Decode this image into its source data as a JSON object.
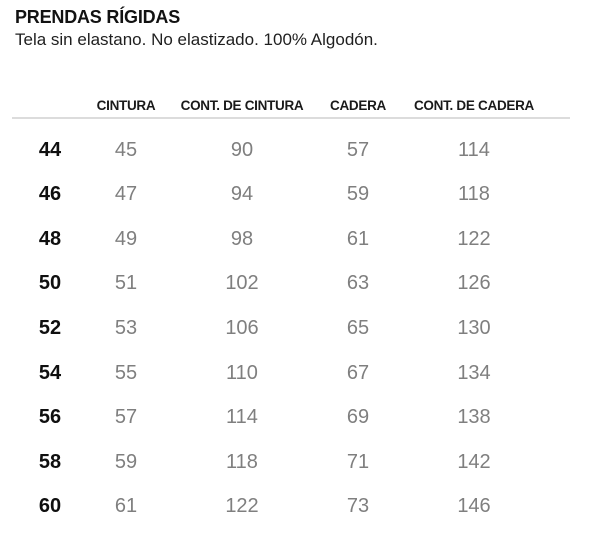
{
  "page": {
    "title": "PRENDAS RÍGIDAS",
    "subtitle": "Tela sin elastano. No elastizado. 100% Algodón."
  },
  "table": {
    "columns": [
      "CINTURA",
      "CONT. DE CINTURA",
      "CADERA",
      "CONT. DE CADERA"
    ],
    "rows": [
      {
        "size": "44",
        "values": [
          "45",
          "90",
          "57",
          "114"
        ]
      },
      {
        "size": "46",
        "values": [
          "47",
          "94",
          "59",
          "118"
        ]
      },
      {
        "size": "48",
        "values": [
          "49",
          "98",
          "61",
          "122"
        ]
      },
      {
        "size": "50",
        "values": [
          "51",
          "102",
          "63",
          "126"
        ]
      },
      {
        "size": "52",
        "values": [
          "53",
          "106",
          "65",
          "130"
        ]
      },
      {
        "size": "54",
        "values": [
          "55",
          "110",
          "67",
          "134"
        ]
      },
      {
        "size": "56",
        "values": [
          "57",
          "114",
          "69",
          "138"
        ]
      },
      {
        "size": "58",
        "values": [
          "59",
          "118",
          "71",
          "142"
        ]
      },
      {
        "size": "60",
        "values": [
          "61",
          "122",
          "73",
          "146"
        ]
      }
    ]
  },
  "colors": {
    "title_text": "#121212",
    "header_text": "#1a1a1a",
    "size_text": "#0f0f0f",
    "value_text": "#7f7f7f",
    "divider": "#dcdcdc",
    "background": "#ffffff"
  }
}
